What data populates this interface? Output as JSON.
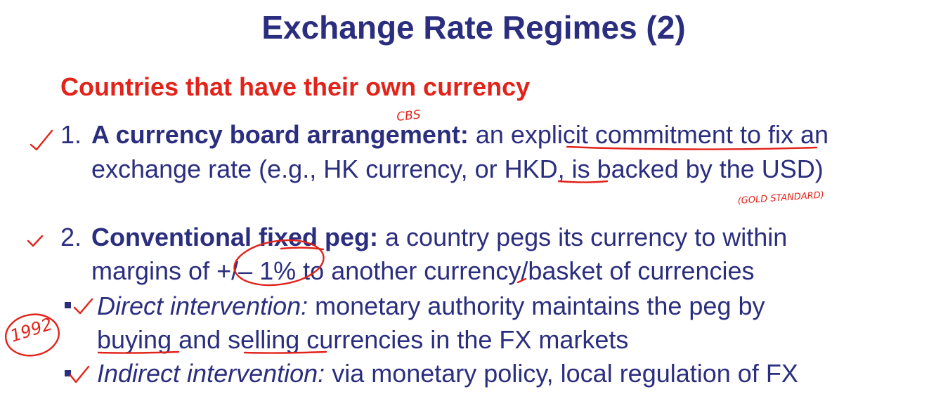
{
  "slide": {
    "title": "Exchange Rate Regimes (2)",
    "subtitle": "Countries that have their own currency",
    "item1": {
      "number": "1.",
      "term": "A currency board arrangement:",
      "text_a": " an ",
      "text_commit": "explicit commitment",
      "text_b": " to fix an",
      "line2_a": "exchange rate (e.g., HK currency, or ",
      "line2_hkd": "HKD",
      "line2_b": ", is backed by the USD)"
    },
    "item2": {
      "number": "2.",
      "term": "Conventional fixed peg:",
      "text": " a country pegs its currency to within",
      "line2_a": "margins of ",
      "line2_margin": "+/– 1%",
      "line2_b": " to another currency/basket of currencies"
    },
    "sub1": {
      "term": "Direct intervention:",
      "text": " monetary authority maintains the peg by",
      "line2_buying": "buying",
      "line2_and": " and ",
      "line2_selling": "selling",
      "line2_rest": " currencies in the FX markets"
    },
    "sub2": {
      "term": "Indirect intervention:",
      "text": " via monetary policy, local regulation of FX"
    }
  },
  "annotations": {
    "cbs_note": "CBS",
    "gold_note": "(GOLD STANDARD)",
    "year_note": "1992",
    "ink_color": "#e2231a"
  },
  "colors": {
    "title": "#2b2e7e",
    "subtitle": "#e2231a",
    "body": "#2b2e7e"
  }
}
